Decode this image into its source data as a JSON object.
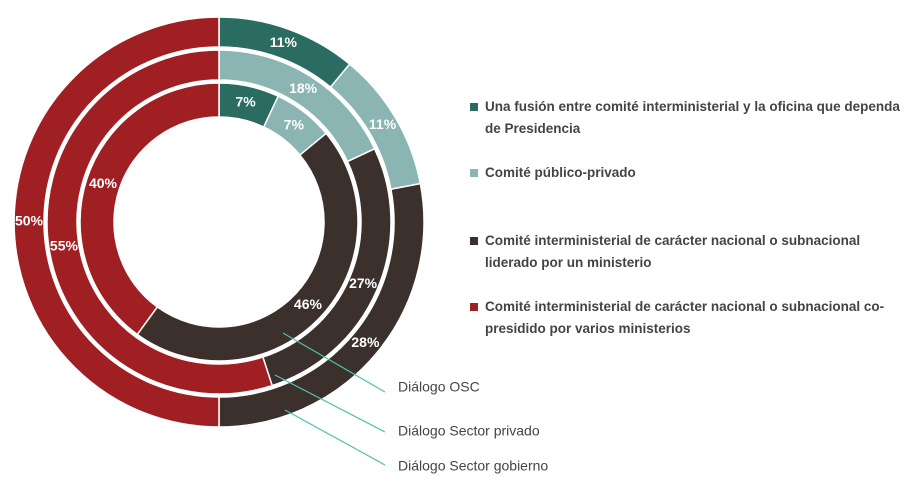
{
  "chart_data": {
    "type": "donut",
    "categories": [
      "Una fusión entre comité interministerial y la oficina que dependa de Presidencia",
      "Comité público-privado",
      "Comité interministerial de carácter nacional o subnacional liderado por un ministerio",
      "Comité interministerial de carácter nacional o subnacional co-presidido por varios ministerios"
    ],
    "colors": [
      "#2a6b62",
      "#8ab5b2",
      "#3b302c",
      "#a01f22"
    ],
    "series": [
      {
        "name": "Diálogo Sector gobierno",
        "values": [
          11,
          11,
          28,
          50
        ],
        "value_labels": [
          "11%",
          "11%",
          "28%",
          "50%"
        ]
      },
      {
        "name": "Diálogo Sector privado",
        "values": [
          0,
          18,
          27,
          55
        ],
        "value_labels": [
          null,
          "18%",
          "27%",
          "55%"
        ]
      },
      {
        "name": "Diálogo OSC",
        "values": [
          7,
          7,
          46,
          40
        ],
        "value_labels": [
          "7%",
          "7%",
          "46%",
          "40%"
        ]
      }
    ],
    "legend": "right"
  }
}
